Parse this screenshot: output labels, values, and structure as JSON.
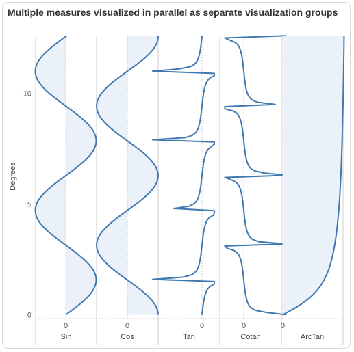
{
  "title": "Multiple measures visualized in parallel as separate visualization groups",
  "colors": {
    "line": "#3f78b0",
    "fill": "#eaf1f8",
    "axis": "#cfcfcf",
    "zero": "#c8c8c8",
    "text": "#555555"
  },
  "chart_data": {
    "type": "line",
    "title": "Multiple measures visualized in parallel as separate visualization groups",
    "ylabel": "Degrees",
    "ylim": [
      0,
      12.6
    ],
    "yticks": [
      0,
      5,
      10
    ],
    "orientation": "vertical-y",
    "grid": false,
    "legend": "none",
    "groups": [
      {
        "name": "Sin",
        "fn": "sin",
        "xlim": [
          -1,
          1
        ],
        "zero_label": "0",
        "fill": true
      },
      {
        "name": "Cos",
        "fn": "cos",
        "xlim": [
          -1,
          1
        ],
        "zero_label": "0",
        "fill": true
      },
      {
        "name": "Tan",
        "fn": "tan",
        "xlim": [
          -20,
          5
        ],
        "zero_label": "0",
        "fill": false
      },
      {
        "name": "Cotan",
        "fn": "cot",
        "xlim": [
          -8,
          18
        ],
        "zero_label": "0",
        "fill": false
      },
      {
        "name": "ArcTan",
        "fn": "atan",
        "xlim": [
          0,
          1.5
        ],
        "zero_label": "0",
        "fill": true
      }
    ],
    "y_step": 0.1,
    "y_max": 12.6
  }
}
